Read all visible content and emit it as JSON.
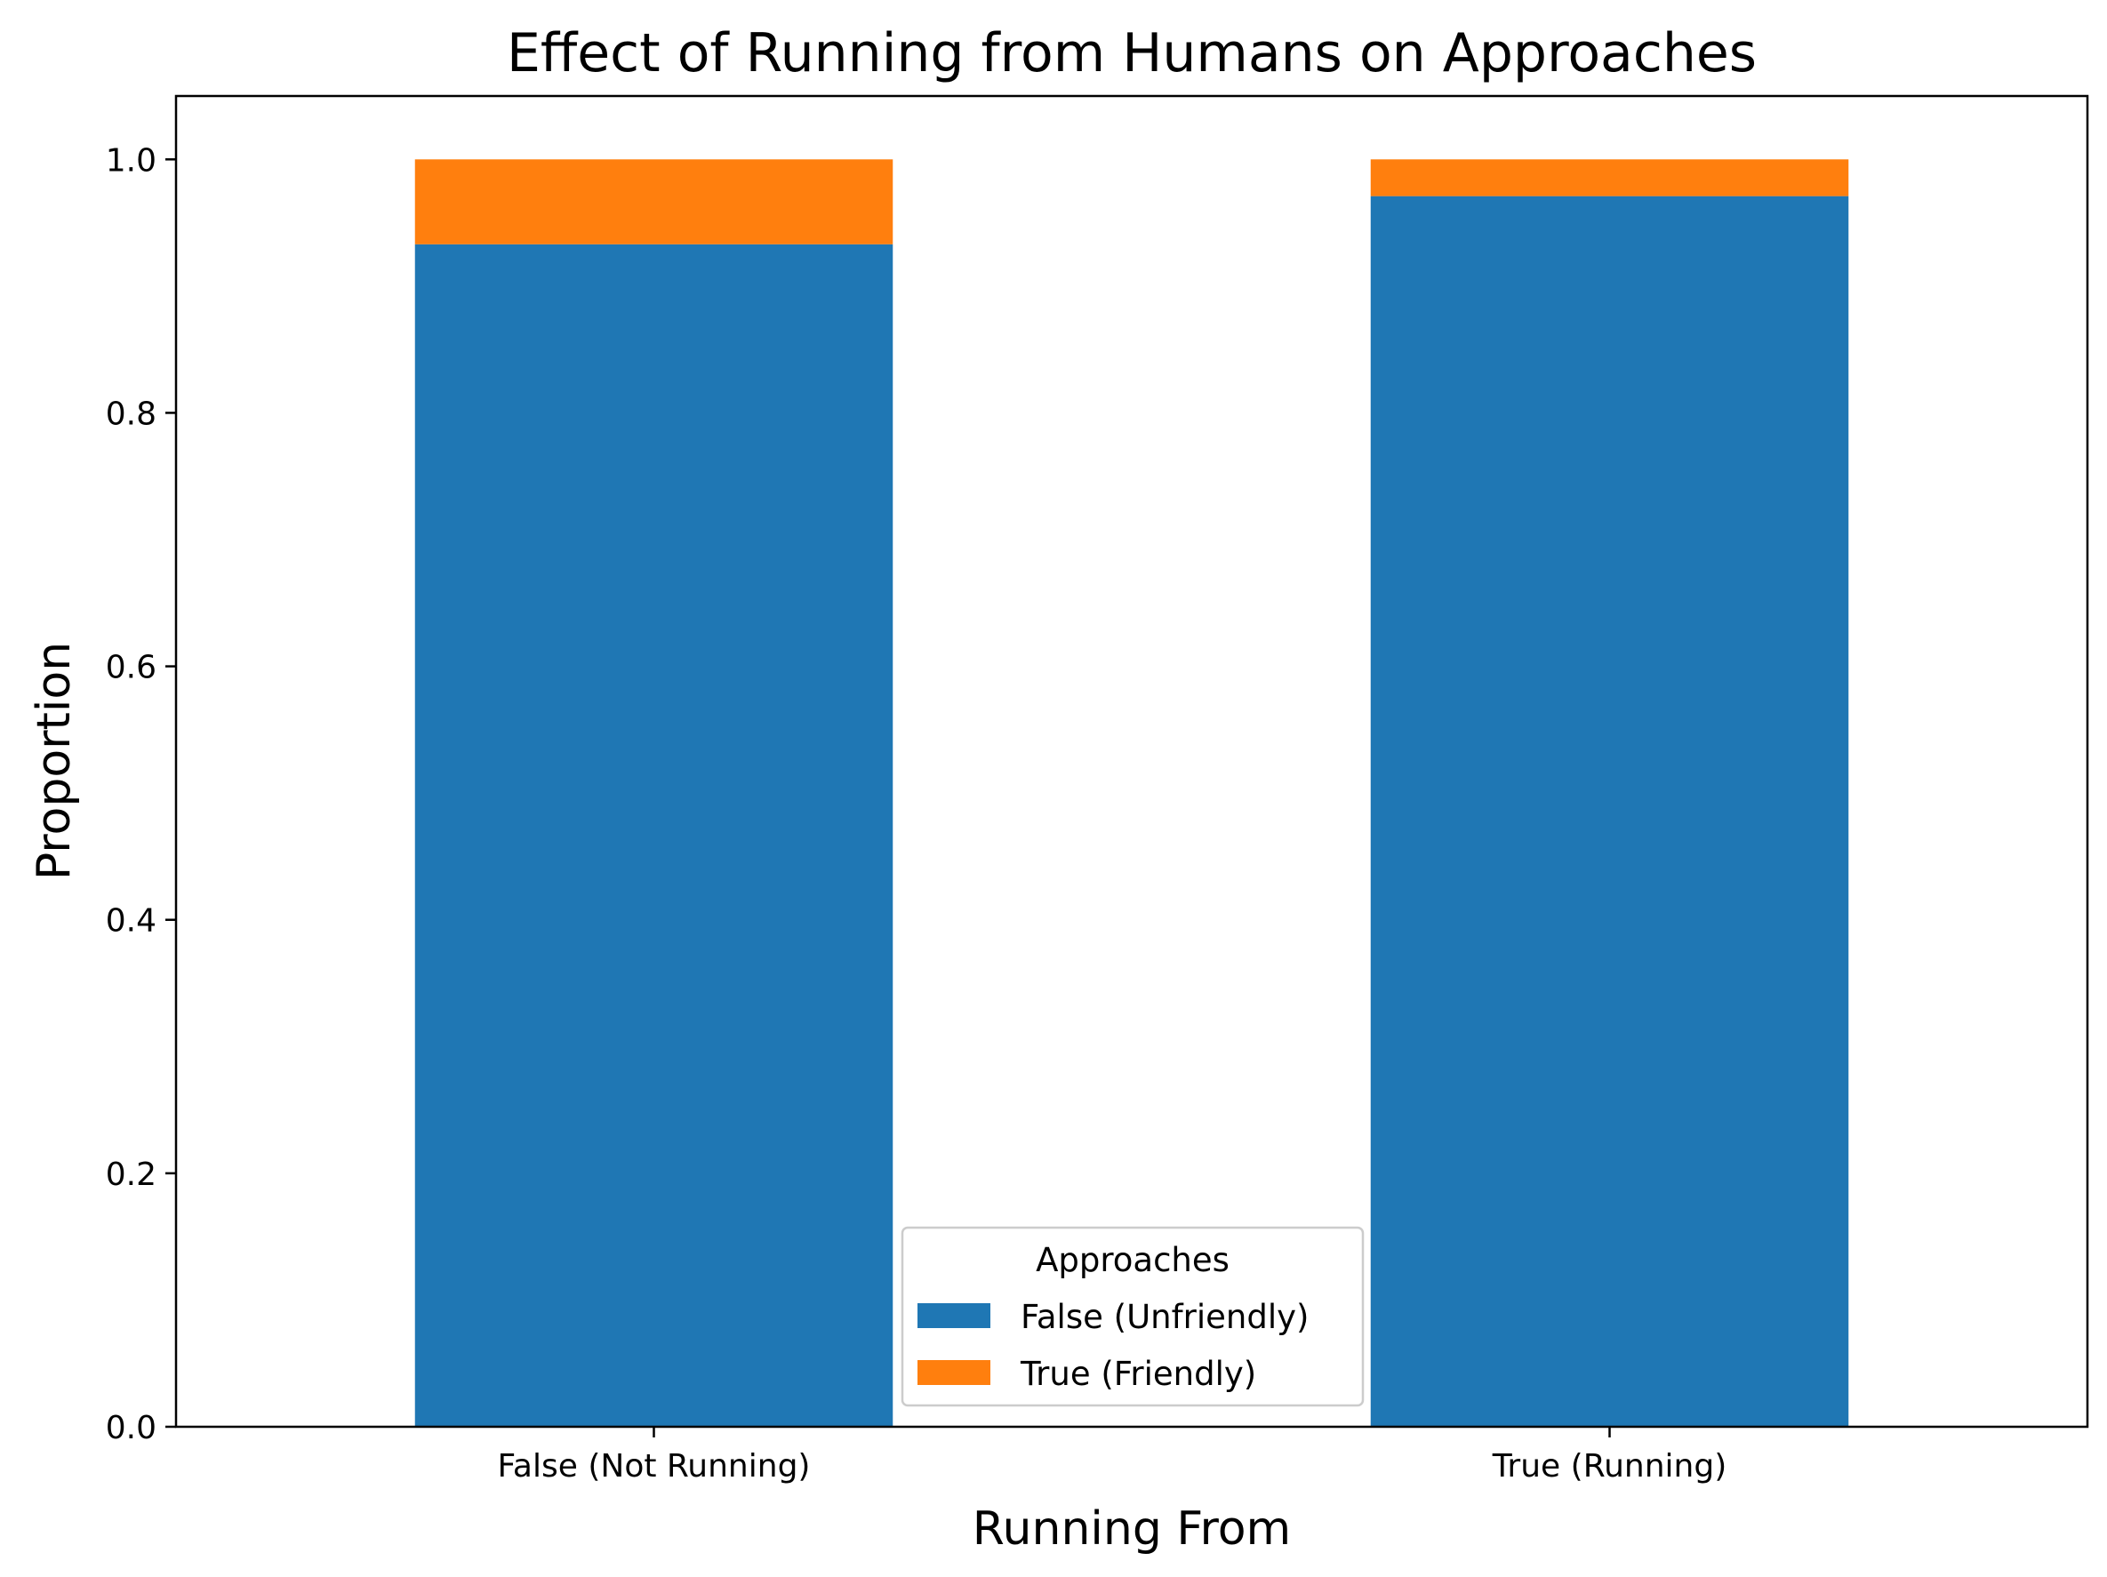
{
  "chart_data": {
    "type": "bar",
    "stacked": true,
    "title": "Effect of Running from Humans on Approaches",
    "xlabel": "Running From",
    "ylabel": "Proportion",
    "categories": [
      "False (Not Running)",
      "True (Running)"
    ],
    "series": [
      {
        "name": "False (Unfriendly)",
        "values": [
          0.933,
          0.971
        ],
        "color": "#1f77b4"
      },
      {
        "name": "True (Friendly)",
        "values": [
          0.067,
          0.029
        ],
        "color": "#ff7f0e"
      }
    ],
    "ylim": [
      0,
      1.05
    ],
    "yticks": [
      0.0,
      0.2,
      0.4,
      0.6,
      0.8,
      1.0
    ],
    "ytick_labels": [
      "0.0",
      "0.2",
      "0.4",
      "0.6",
      "0.8",
      "1.0"
    ],
    "legend": {
      "title": "Approaches",
      "placement": "bottom-center"
    },
    "grid": false
  }
}
